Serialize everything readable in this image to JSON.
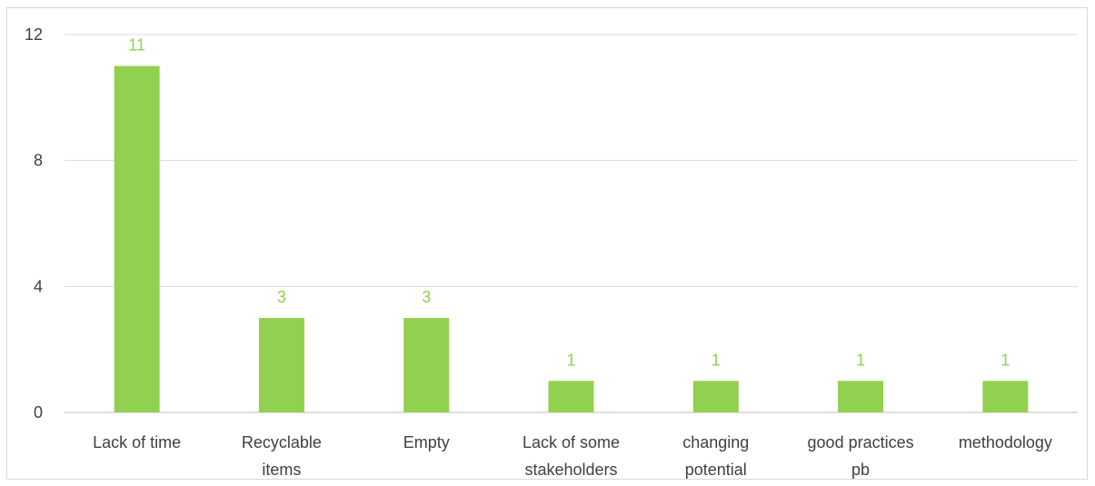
{
  "chart_data": {
    "type": "bar",
    "categories": [
      [
        "Lack of time"
      ],
      [
        "Recyclable",
        "items"
      ],
      [
        "Empty"
      ],
      [
        "Lack of some",
        "stakeholders"
      ],
      [
        "changing",
        "potential"
      ],
      [
        "good practices",
        "pb"
      ],
      [
        "methodology"
      ]
    ],
    "values": [
      11,
      3,
      3,
      1,
      1,
      1,
      1
    ],
    "ylim": [
      0,
      12
    ],
    "yticks": [
      0,
      4,
      8,
      12
    ],
    "grid": true,
    "title": "",
    "xlabel": "",
    "ylabel": "",
    "colors": {
      "bar": "#92d050",
      "data_label": "#92d050",
      "grid": "#d9d9d9",
      "axis": "#bfbfbf"
    }
  }
}
